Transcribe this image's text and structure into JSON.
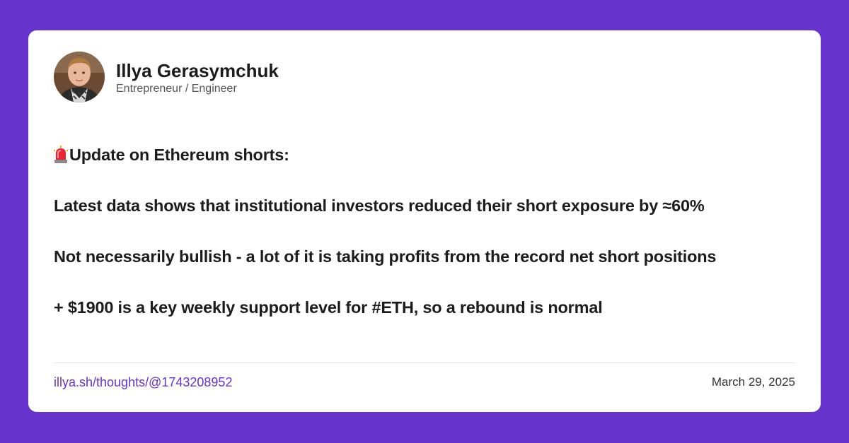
{
  "author": {
    "name": "Illya Gerasymchuk",
    "role": "Entrepreneur / Engineer",
    "avatar_icon": "avatar-photo"
  },
  "post": {
    "title_icon": "siren-icon",
    "lines": [
      "Update on Ethereum shorts:",
      "Latest data shows that institutional investors reduced their short exposure by ≈60%",
      "Not necessarily bullish - a lot of it is taking profits from the record net short positions",
      "+ $1900 is a key weekly support level for #ETH, so a rebound is normal"
    ]
  },
  "footer": {
    "link": "illya.sh/thoughts/@1743208952",
    "date": "March 29, 2025"
  },
  "colors": {
    "background": "#6633cc",
    "card": "#ffffff",
    "link": "#6633cc",
    "text": "#1c1c1e"
  }
}
